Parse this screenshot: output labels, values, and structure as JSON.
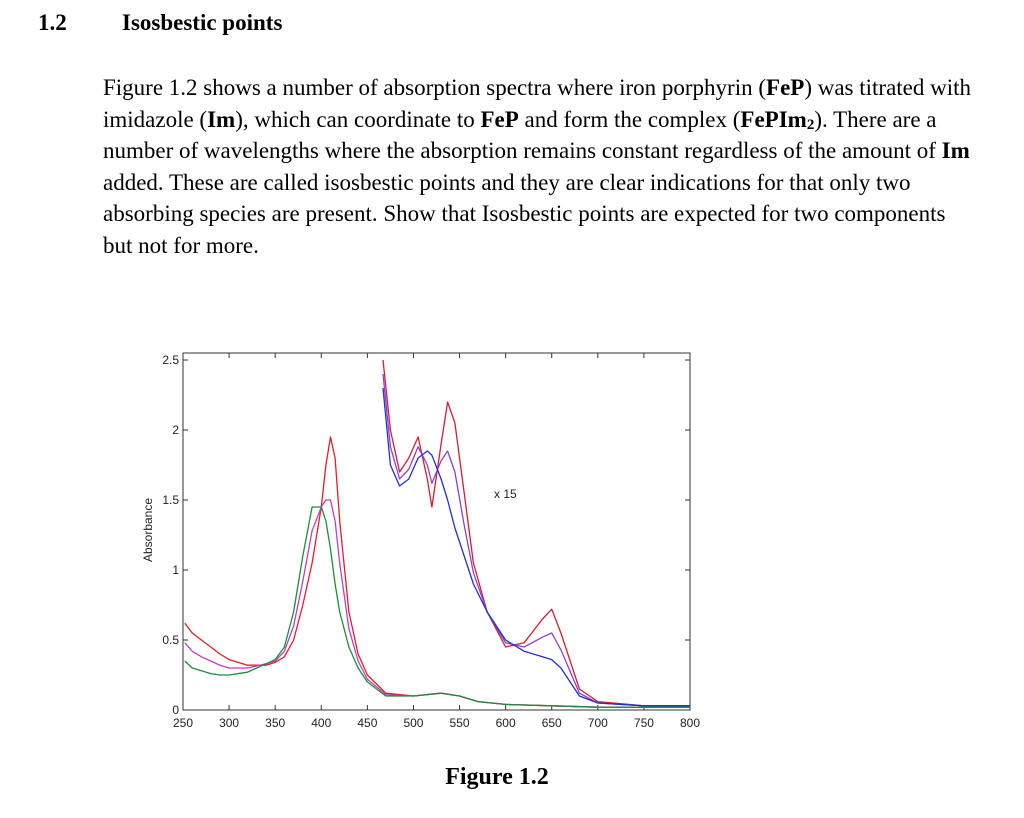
{
  "section": {
    "number": "1.2",
    "title": "Isosbestic points"
  },
  "paragraph": [
    {
      "text": "Figure 1.2 shows a number of absorption spectra where iron porphyrin ("
    },
    {
      "text": "FeP",
      "bold": true
    },
    {
      "text": ") was titrated with imidazole ("
    },
    {
      "text": "Im",
      "bold": true
    },
    {
      "text": "), which can coordinate to "
    },
    {
      "text": "FeP",
      "bold": true
    },
    {
      "text": " and form the complex ("
    },
    {
      "text": "FePIm",
      "bold": true
    },
    {
      "text": "2",
      "bold": true,
      "sub": true
    },
    {
      "text": "). There are a number of wavelengths where the absorption remains constant regardless of the amount of "
    },
    {
      "text": "Im",
      "bold": true
    },
    {
      "text": " added. These are called isosbestic points and they are clear indications for that only two absorbing species are present. Show that Isosbestic points are expected for two components but not for more."
    }
  ],
  "figure": {
    "caption": "Figure 1.2",
    "chart_data": {
      "type": "line",
      "ylabel": "Absorbance",
      "annotation": "x 15",
      "xlim": [
        250,
        800
      ],
      "ylim": [
        0,
        2.55
      ],
      "xticks": [
        250,
        300,
        350,
        400,
        450,
        500,
        550,
        600,
        650,
        700,
        750,
        800
      ],
      "yticks": [
        0,
        0.5,
        1,
        1.5,
        2,
        2.5
      ],
      "series": [
        {
          "color": "#e0202a",
          "x": [
            252,
            260,
            270,
            280,
            290,
            300,
            320,
            340,
            350,
            360,
            370,
            380,
            390,
            400,
            405,
            410,
            415,
            420,
            430,
            440,
            450,
            470,
            500,
            530,
            550,
            570,
            600,
            650,
            700,
            750,
            800
          ],
          "values": [
            0.62,
            0.55,
            0.5,
            0.45,
            0.4,
            0.36,
            0.32,
            0.32,
            0.34,
            0.38,
            0.5,
            0.75,
            1.05,
            1.45,
            1.75,
            1.95,
            1.8,
            1.35,
            0.7,
            0.4,
            0.25,
            0.12,
            0.1,
            0.12,
            0.1,
            0.06,
            0.04,
            0.03,
            0.02,
            0.02,
            0.02
          ]
        },
        {
          "color": "#c040c0",
          "x": [
            252,
            260,
            270,
            280,
            290,
            300,
            320,
            340,
            350,
            360,
            370,
            380,
            390,
            400,
            405,
            410,
            415,
            420,
            430,
            440,
            450,
            470,
            500,
            530,
            550,
            570,
            600,
            650,
            700,
            750,
            800
          ],
          "values": [
            0.48,
            0.42,
            0.38,
            0.35,
            0.32,
            0.3,
            0.3,
            0.33,
            0.35,
            0.42,
            0.6,
            0.92,
            1.28,
            1.45,
            1.5,
            1.5,
            1.35,
            1.05,
            0.58,
            0.35,
            0.22,
            0.11,
            0.1,
            0.12,
            0.1,
            0.06,
            0.04,
            0.03,
            0.02,
            0.02,
            0.02
          ]
        },
        {
          "color": "#1e8c3a",
          "x": [
            252,
            260,
            270,
            280,
            290,
            300,
            320,
            340,
            350,
            360,
            370,
            380,
            390,
            400,
            405,
            410,
            415,
            420,
            430,
            440,
            450,
            470,
            500,
            530,
            550,
            570,
            600,
            650,
            700,
            750,
            800
          ],
          "values": [
            0.35,
            0.3,
            0.28,
            0.26,
            0.25,
            0.25,
            0.27,
            0.33,
            0.36,
            0.45,
            0.7,
            1.1,
            1.45,
            1.45,
            1.35,
            1.15,
            0.9,
            0.7,
            0.45,
            0.3,
            0.2,
            0.1,
            0.1,
            0.12,
            0.1,
            0.06,
            0.04,
            0.03,
            0.02,
            0.02,
            0.02
          ]
        },
        {
          "color": "#d02030",
          "x": [
            467,
            475,
            485,
            495,
            505,
            515,
            520,
            530,
            537,
            545,
            555,
            565,
            580,
            600,
            620,
            640,
            650,
            660,
            680,
            700,
            750,
            800
          ],
          "values": [
            2.5,
            2.0,
            1.7,
            1.8,
            1.95,
            1.65,
            1.45,
            1.9,
            2.2,
            2.05,
            1.55,
            1.05,
            0.7,
            0.45,
            0.48,
            0.65,
            0.72,
            0.55,
            0.15,
            0.06,
            0.03,
            0.03
          ]
        },
        {
          "color": "#9040d0",
          "x": [
            467,
            475,
            485,
            495,
            505,
            515,
            520,
            530,
            537,
            545,
            555,
            565,
            580,
            600,
            620,
            640,
            650,
            660,
            680,
            700,
            750,
            800
          ],
          "values": [
            2.4,
            1.88,
            1.65,
            1.72,
            1.88,
            1.75,
            1.62,
            1.78,
            1.85,
            1.7,
            1.32,
            0.98,
            0.7,
            0.48,
            0.45,
            0.52,
            0.55,
            0.43,
            0.12,
            0.05,
            0.03,
            0.03
          ]
        },
        {
          "color": "#2030d0",
          "x": [
            467,
            475,
            485,
            495,
            505,
            515,
            520,
            530,
            537,
            545,
            555,
            565,
            580,
            600,
            620,
            640,
            650,
            660,
            680,
            700,
            750,
            800
          ],
          "values": [
            2.3,
            1.75,
            1.6,
            1.65,
            1.8,
            1.85,
            1.82,
            1.65,
            1.5,
            1.3,
            1.1,
            0.9,
            0.7,
            0.5,
            0.42,
            0.38,
            0.36,
            0.3,
            0.1,
            0.05,
            0.03,
            0.03
          ]
        }
      ]
    }
  }
}
